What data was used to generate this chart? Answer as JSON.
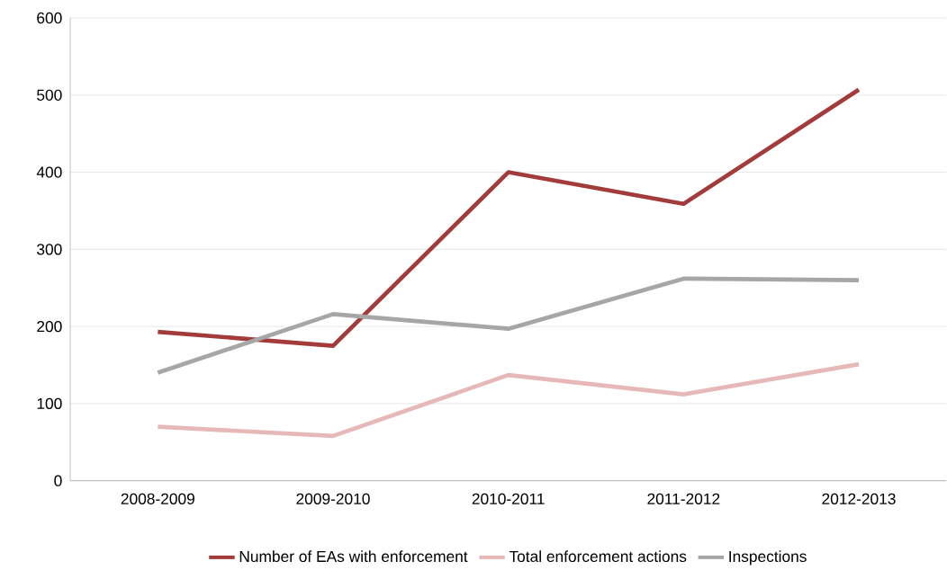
{
  "chart_data": {
    "type": "line",
    "categories": [
      "2008-2009",
      "2009-2010",
      "2010-2011",
      "2011-2012",
      "2012-2013"
    ],
    "series": [
      {
        "name": "Number of EAs with enforcement",
        "color": "#a33b3b",
        "values": [
          193,
          175,
          400,
          359,
          507
        ]
      },
      {
        "name": "Total enforcement actions",
        "color": "#e6b8b7",
        "values": [
          70,
          58,
          137,
          112,
          151
        ]
      },
      {
        "name": "Inspections",
        "color": "#a6a6a6",
        "values": [
          140,
          216,
          197,
          262,
          260
        ]
      }
    ],
    "ylim": [
      0,
      600
    ],
    "yticks": [
      0,
      100,
      200,
      300,
      400,
      500,
      600
    ],
    "grid": "y",
    "legend": "bottom",
    "marker": "none",
    "line_style": "solid"
  }
}
